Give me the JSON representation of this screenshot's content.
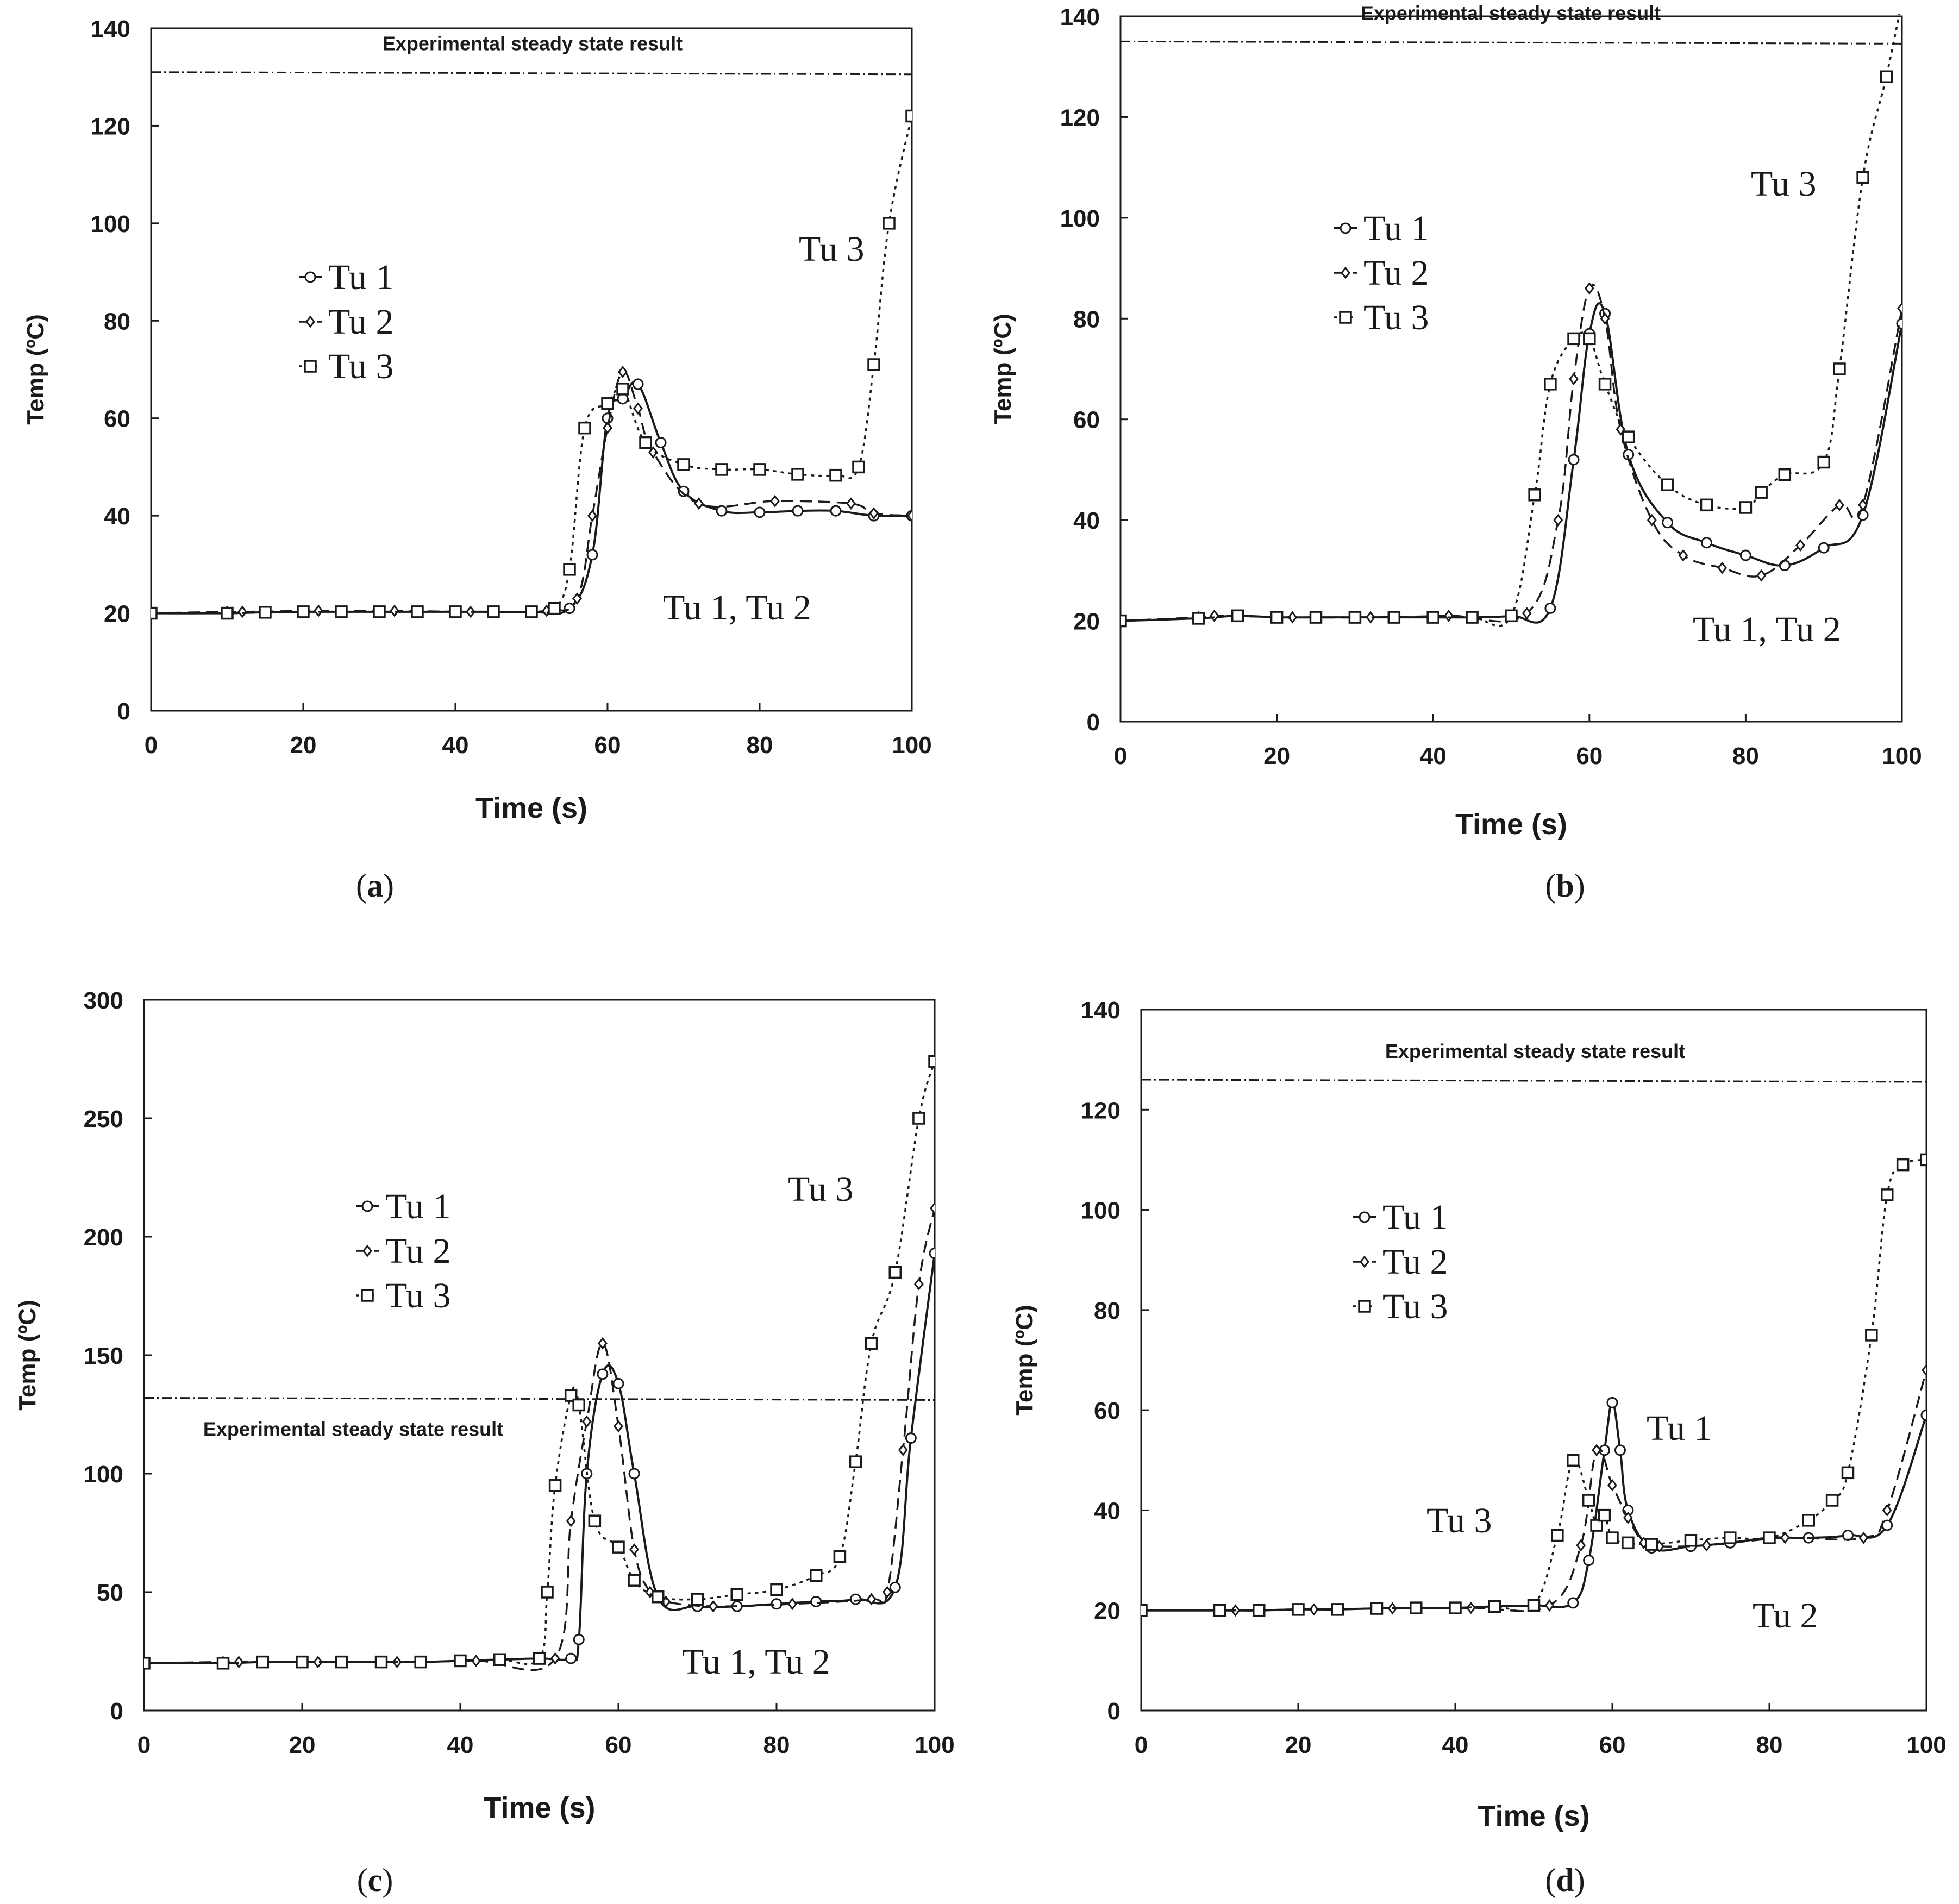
{
  "chart_data": [
    {
      "type": "line",
      "panel_label": "a",
      "xlabel": "Time (s)",
      "ylabel": "Temp (ºC)",
      "xlim": [
        0,
        100
      ],
      "ylim": [
        0,
        140
      ],
      "xticks": [
        0,
        20,
        40,
        60,
        80,
        100
      ],
      "yticks": [
        0,
        20,
        40,
        60,
        80,
        100,
        120,
        140
      ],
      "steady_state": {
        "label": "Experimental steady state result",
        "value": 131
      },
      "legend": {
        "entries": [
          "Tu 1",
          "Tu 2",
          "Tu 3"
        ],
        "location": "center-left"
      },
      "annotations": [
        {
          "text": "Tu 3",
          "x": 91,
          "y": 101
        },
        {
          "text": "Tu 1, Tu 2",
          "x": 67,
          "y": 21
        }
      ],
      "series": [
        {
          "name": "Tu 1",
          "marker": "circle",
          "x": [
            0,
            10,
            15,
            20,
            25,
            30,
            35,
            40,
            45,
            50,
            55,
            58,
            60,
            62,
            64,
            67,
            70,
            75,
            80,
            85,
            90,
            95,
            100
          ],
          "y": [
            20,
            20,
            20.2,
            20.3,
            20.3,
            20.3,
            20.3,
            20.3,
            20.3,
            20.3,
            21,
            32,
            60,
            64,
            67,
            55,
            45,
            41,
            40.7,
            41,
            41,
            40,
            40
          ]
        },
        {
          "name": "Tu 2",
          "marker": "diamond",
          "x": [
            0,
            10,
            12,
            22,
            32,
            42,
            52,
            56,
            58,
            60,
            62,
            64,
            66,
            72,
            82,
            92,
            95,
            100
          ],
          "y": [
            20,
            20.3,
            20.3,
            20.5,
            20.5,
            20.3,
            20.5,
            23,
            40,
            58,
            69.5,
            62,
            53,
            42.5,
            43,
            42.5,
            40.5,
            40
          ]
        },
        {
          "name": "Tu 3",
          "marker": "square",
          "x": [
            0,
            10,
            15,
            20,
            25,
            30,
            35,
            40,
            45,
            50,
            53,
            55,
            57,
            60,
            62,
            65,
            70,
            75,
            80,
            85,
            90,
            93,
            95,
            97,
            100
          ],
          "y": [
            20,
            20,
            20.2,
            20.3,
            20.3,
            20.3,
            20.3,
            20.3,
            20.3,
            20.3,
            21,
            29,
            58,
            63,
            66,
            55,
            50.5,
            49.5,
            49.5,
            48.5,
            48.3,
            50,
            71,
            100,
            122
          ]
        }
      ]
    },
    {
      "type": "line",
      "panel_label": "b",
      "xlabel": "Time (s)",
      "ylabel": "Temp (ºC)",
      "xlim": [
        0,
        100
      ],
      "ylim": [
        0,
        140
      ],
      "xticks": [
        0,
        20,
        40,
        60,
        80,
        100
      ],
      "yticks": [
        0,
        20,
        40,
        60,
        80,
        100,
        120,
        140
      ],
      "steady_state": {
        "label": "Experimental steady state result",
        "value": 135
      },
      "legend": {
        "entries": [
          "Tu 1",
          "Tu 2",
          "Tu 3"
        ],
        "location": "center-left"
      },
      "annotations": [
        {
          "text": "Tu 3",
          "x": 85,
          "y": 113
        },
        {
          "text": "Tu 1, Tu 2",
          "x": 75,
          "y": 18
        }
      ],
      "series": [
        {
          "name": "Tu 1",
          "marker": "circle",
          "x": [
            0,
            10,
            15,
            20,
            25,
            30,
            35,
            40,
            45,
            50,
            55,
            58,
            60,
            62,
            65,
            70,
            75,
            80,
            85,
            90,
            95,
            100
          ],
          "y": [
            20,
            20.5,
            21,
            20.7,
            20.7,
            20.7,
            20.7,
            20.7,
            20.7,
            21,
            22.5,
            52,
            77,
            81,
            53,
            39.5,
            35.5,
            33,
            31,
            34.5,
            41,
            79
          ]
        },
        {
          "name": "Tu 2",
          "marker": "diamond",
          "x": [
            0,
            10,
            12,
            22,
            32,
            42,
            52,
            56,
            58,
            60,
            62,
            64,
            68,
            72,
            77,
            82,
            87,
            92,
            95,
            100
          ],
          "y": [
            20,
            20.7,
            21,
            20.7,
            20.7,
            21,
            21.5,
            40,
            68,
            86,
            80,
            58,
            40,
            33,
            30.5,
            29,
            35,
            43,
            43,
            82
          ]
        },
        {
          "name": "Tu 3",
          "marker": "square",
          "x": [
            0,
            10,
            15,
            20,
            25,
            30,
            35,
            40,
            45,
            50,
            53,
            55,
            58,
            60,
            62,
            65,
            70,
            75,
            80,
            82,
            85,
            90,
            92,
            95,
            98,
            100
          ],
          "y": [
            20,
            20.5,
            21,
            20.7,
            20.7,
            20.7,
            20.7,
            20.7,
            20.7,
            21,
            45,
            67,
            76,
            76,
            67,
            56.5,
            47,
            43,
            42.5,
            45.5,
            49,
            51.5,
            70,
            108,
            128,
            143
          ]
        }
      ]
    },
    {
      "type": "line",
      "panel_label": "c",
      "xlabel": "Time (s)",
      "ylabel": "Temp (ºC)",
      "xlim": [
        0,
        100
      ],
      "ylim": [
        0,
        300
      ],
      "xticks": [
        0,
        20,
        40,
        60,
        80,
        100
      ],
      "yticks": [
        0,
        50,
        100,
        150,
        200,
        250,
        300
      ],
      "steady_state": {
        "label": "Experimental steady state result",
        "value": 132
      },
      "legend": {
        "entries": [
          "Tu 1",
          "Tu 2",
          "Tu 3"
        ],
        "location": "center-left"
      },
      "annotations": [
        {
          "text": "Tu 3",
          "x": 84,
          "y": 218
        },
        {
          "text": "Tu 1, Tu 2",
          "x": 68,
          "y": 38
        }
      ],
      "series": [
        {
          "name": "Tu 1",
          "marker": "circle",
          "x": [
            0,
            10,
            15,
            20,
            25,
            30,
            35,
            40,
            45,
            50,
            54,
            55,
            56,
            58,
            60,
            62,
            65,
            70,
            75,
            80,
            85,
            90,
            95,
            97,
            100
          ],
          "y": [
            20,
            20,
            20.5,
            20.5,
            20.5,
            20.5,
            20.5,
            21,
            21.5,
            22,
            22,
            30,
            100,
            142,
            138,
            100,
            48,
            44,
            44,
            45,
            46,
            47,
            52,
            115,
            193
          ]
        },
        {
          "name": "Tu 2",
          "marker": "diamond",
          "x": [
            0,
            10,
            12,
            22,
            32,
            42,
            52,
            54,
            56,
            58,
            60,
            62,
            64,
            66,
            72,
            82,
            92,
            94,
            96,
            98,
            100
          ],
          "y": [
            20,
            20.5,
            20.5,
            20.5,
            20.5,
            21,
            22,
            80,
            122,
            155,
            120,
            68,
            50,
            46,
            44,
            45,
            47,
            50,
            110,
            180,
            212
          ]
        },
        {
          "name": "Tu 3",
          "marker": "square",
          "x": [
            0,
            10,
            15,
            20,
            25,
            30,
            35,
            40,
            45,
            50,
            51,
            52,
            54,
            55,
            57,
            60,
            62,
            65,
            70,
            75,
            80,
            85,
            88,
            90,
            92,
            95,
            98,
            100
          ],
          "y": [
            20,
            20,
            20.5,
            20.5,
            20.5,
            20.5,
            20.5,
            21,
            21.5,
            22,
            50,
            95,
            133,
            129,
            80,
            69,
            55,
            48,
            47,
            49,
            51,
            57,
            65,
            105,
            155,
            185,
            250,
            274
          ]
        }
      ]
    },
    {
      "type": "line",
      "panel_label": "d",
      "xlabel": "Time (s)",
      "ylabel": "Temp (ºC)",
      "xlim": [
        0,
        100
      ],
      "ylim": [
        0,
        140
      ],
      "xticks": [
        0,
        20,
        40,
        60,
        80,
        100
      ],
      "yticks": [
        0,
        20,
        40,
        60,
        80,
        100,
        120,
        140
      ],
      "steady_state": {
        "label": "Experimental steady state result",
        "value": 126
      },
      "legend": {
        "entries": [
          "Tu 1",
          "Tu 2",
          "Tu 3"
        ],
        "location": "center-left"
      },
      "annotations": [
        {
          "text": "Tu 1",
          "x": 69,
          "y": 55
        },
        {
          "text": "Tu 3",
          "x": 36,
          "y": 26
        },
        {
          "text": "Tu 2",
          "x": 77,
          "y": 17
        }
      ],
      "series": [
        {
          "name": "Tu 1",
          "marker": "circle",
          "x": [
            0,
            10,
            15,
            20,
            25,
            30,
            35,
            40,
            45,
            50,
            55,
            57,
            59,
            60,
            61,
            62,
            65,
            70,
            75,
            80,
            85,
            90,
            95,
            100
          ],
          "y": [
            20,
            20,
            20,
            20.2,
            20.2,
            20.4,
            20.5,
            20.5,
            20.8,
            21,
            21.5,
            30,
            52,
            61.5,
            52,
            40,
            32.5,
            32.8,
            33.5,
            34.5,
            34.5,
            35,
            37,
            59
          ]
        },
        {
          "name": "Tu 2",
          "marker": "diamond",
          "x": [
            0,
            10,
            12,
            22,
            32,
            42,
            52,
            56,
            58,
            60,
            62,
            64,
            66,
            72,
            82,
            92,
            95,
            100
          ],
          "y": [
            20,
            20,
            20,
            20.2,
            20.4,
            20.5,
            21,
            33,
            52,
            45,
            38.5,
            33.5,
            32.8,
            33,
            34.5,
            34.5,
            40,
            68
          ]
        },
        {
          "name": "Tu 3",
          "marker": "square",
          "x": [
            0,
            10,
            15,
            20,
            25,
            30,
            35,
            40,
            45,
            50,
            53,
            55,
            57,
            58,
            59,
            60,
            62,
            65,
            70,
            75,
            80,
            85,
            88,
            90,
            93,
            95,
            97,
            100
          ],
          "y": [
            20,
            20,
            20,
            20.2,
            20.2,
            20.4,
            20.5,
            20.5,
            20.8,
            21,
            35,
            50,
            42,
            37,
            39,
            34.5,
            33.5,
            33.2,
            34,
            34.5,
            34.5,
            38,
            42,
            47.5,
            75,
            103,
            109,
            110
          ]
        }
      ]
    }
  ]
}
